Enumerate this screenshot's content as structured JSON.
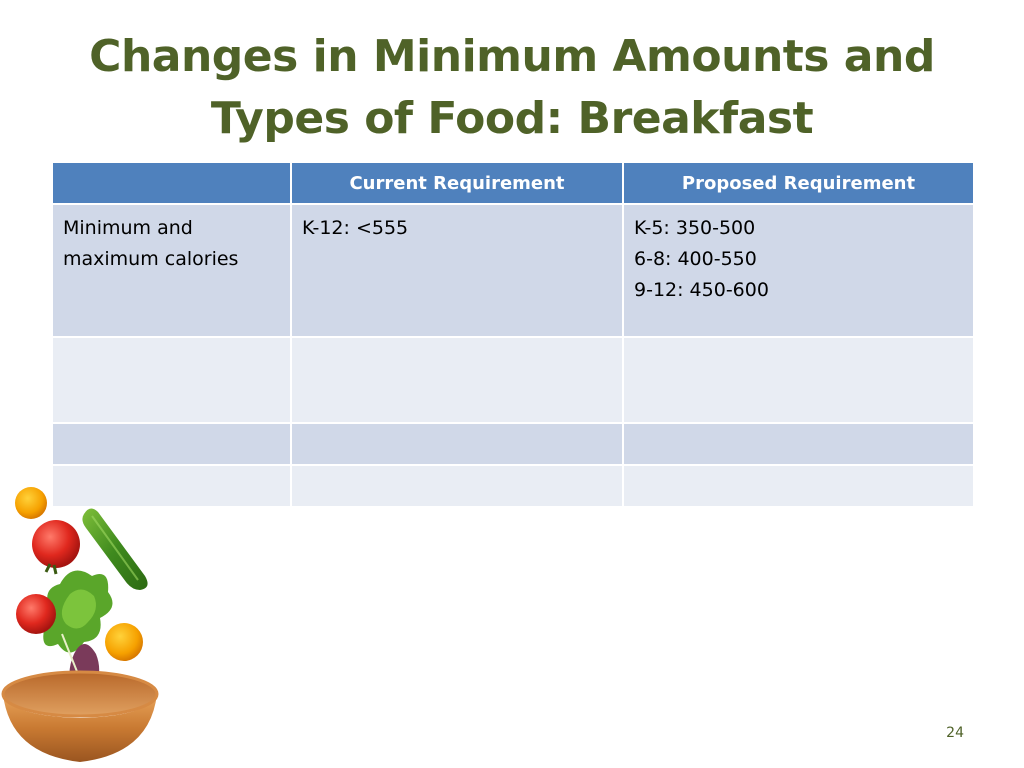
{
  "slide": {
    "title_line1": "Changes in Minimum Amounts and",
    "title_line2": "Types of Food: Breakfast",
    "page_number": "24"
  },
  "table": {
    "headers": [
      "",
      "Current Requirement",
      "Proposed Requirement"
    ],
    "rows": [
      {
        "item_lines": [
          "Minimum and",
          "maximum calories"
        ],
        "current": "K-12: <555",
        "proposed_lines": [
          "K-5: 350-500",
          "6-8: 400-550",
          "9-12: 450-600"
        ]
      },
      {
        "item_lines": [],
        "current": "",
        "proposed_lines": []
      },
      {
        "item_lines": [],
        "current": "",
        "proposed_lines": []
      },
      {
        "item_lines": [],
        "current": "",
        "proposed_lines": []
      }
    ]
  },
  "decoration": {
    "image": "fruit-and-vegetables-falling-into-wooden-bowl-illustration"
  }
}
